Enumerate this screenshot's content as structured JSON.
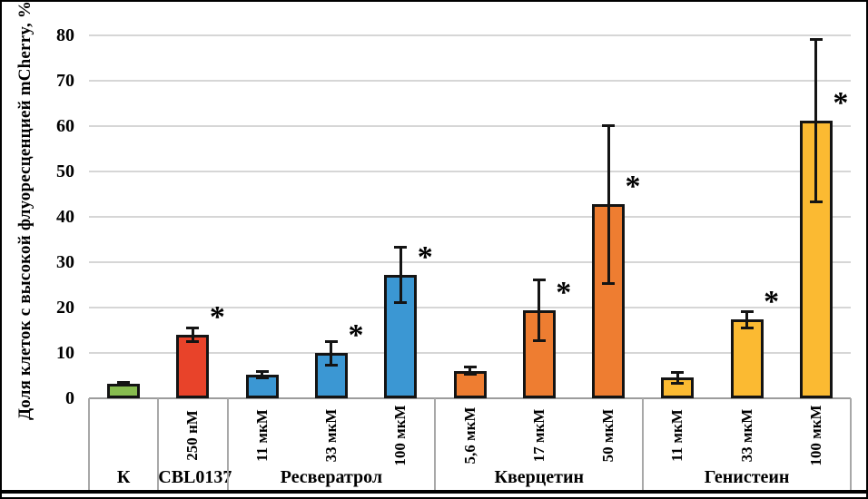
{
  "chart_data": {
    "type": "bar",
    "title": "",
    "ylabel": "Доля клеток с высокой флуоресценцией mCherry, %",
    "xlabel": "",
    "ylim": [
      0,
      80
    ],
    "yticks": [
      0,
      10,
      20,
      30,
      40,
      50,
      60,
      70,
      80
    ],
    "grid": true,
    "legend": "none",
    "significance_marker": "*",
    "groups": [
      {
        "label": "К",
        "color": "#87BC4F",
        "bars": [
          {
            "dose": "",
            "value": 3.3,
            "error": 0.4,
            "significant": false
          }
        ]
      },
      {
        "label": "CBL0137",
        "color": "#E8432A",
        "bars": [
          {
            "dose": "250 нМ",
            "value": 14.0,
            "error": 1.6,
            "significant": true
          }
        ]
      },
      {
        "label": "Ресвератрол",
        "color": "#3B97D3",
        "bars": [
          {
            "dose": "11 мкМ",
            "value": 5.2,
            "error": 0.8,
            "significant": false
          },
          {
            "dose": "33 мкМ",
            "value": 10.0,
            "error": 2.7,
            "significant": true
          },
          {
            "dose": "100 мкМ",
            "value": 27.3,
            "error": 6.2,
            "significant": true
          }
        ]
      },
      {
        "label": "Кверцетин",
        "color": "#EE7D31",
        "bars": [
          {
            "dose": "5,6 мкМ",
            "value": 6.1,
            "error": 0.9,
            "significant": false
          },
          {
            "dose": "17 мкМ",
            "value": 19.5,
            "error": 6.8,
            "significant": true
          },
          {
            "dose": "50 мкМ",
            "value": 42.8,
            "error": 17.5,
            "significant": true
          }
        ]
      },
      {
        "label": "Генистеин",
        "color": "#FBBA32",
        "bars": [
          {
            "dose": "11 мкМ",
            "value": 4.6,
            "error": 1.3,
            "significant": false
          },
          {
            "dose": "33 мкМ",
            "value": 17.4,
            "error": 1.9,
            "significant": true
          },
          {
            "dose": "100 мкМ",
            "value": 61.3,
            "error": 18.0,
            "significant": true
          }
        ]
      }
    ],
    "colors": {
      "bar_border": "#141414",
      "gridline": "#d6d6d6",
      "axis": "#9c9c9c",
      "frame": "#000000"
    }
  }
}
